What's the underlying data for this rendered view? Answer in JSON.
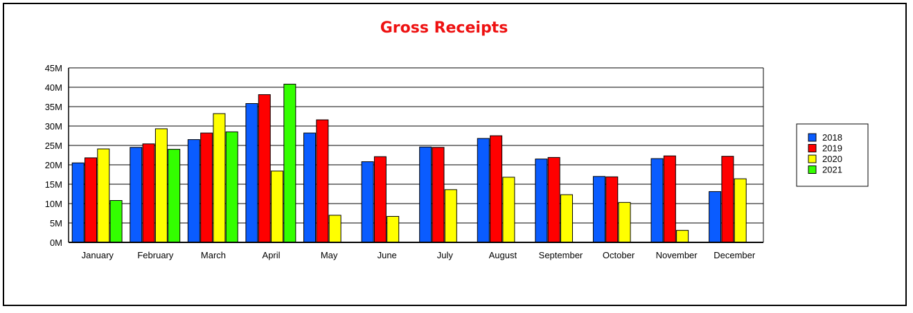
{
  "chart_data": {
    "type": "bar",
    "title": "Gross Receipts",
    "title_color": "#ee1111",
    "xlabel": "",
    "ylabel": "",
    "ylim": [
      0,
      45
    ],
    "yticks": [
      "0M",
      "5M",
      "10M",
      "15M",
      "20M",
      "25M",
      "30M",
      "35M",
      "40M",
      "45M"
    ],
    "grid": true,
    "legend_position": "right",
    "categories": [
      "January",
      "February",
      "March",
      "April",
      "May",
      "June",
      "July",
      "August",
      "September",
      "October",
      "November",
      "December"
    ],
    "series": [
      {
        "name": "2018",
        "color": "#0a5cff",
        "values": [
          20.5,
          24.5,
          26.5,
          35.8,
          28.2,
          20.8,
          24.6,
          26.8,
          21.5,
          17.0,
          21.6,
          13.1
        ]
      },
      {
        "name": "2019",
        "color": "#ff0000",
        "values": [
          21.8,
          25.4,
          28.2,
          38.1,
          31.6,
          22.1,
          24.5,
          27.5,
          21.9,
          16.9,
          22.3,
          22.2
        ]
      },
      {
        "name": "2020",
        "color": "#ffff00",
        "values": [
          24.1,
          29.3,
          33.2,
          18.4,
          7.0,
          6.7,
          13.6,
          16.8,
          12.3,
          10.3,
          3.1,
          16.4
        ]
      },
      {
        "name": "2021",
        "color": "#33ff00",
        "values": [
          10.8,
          24.0,
          28.5,
          40.8,
          null,
          null,
          null,
          null,
          null,
          null,
          null,
          null
        ]
      }
    ]
  }
}
